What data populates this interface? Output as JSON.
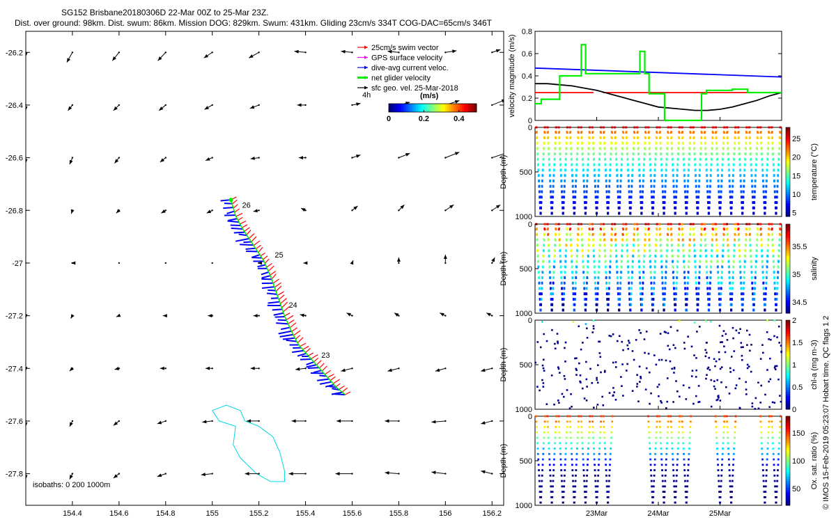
{
  "header": {
    "title": "SG152 Brisbane20180306D 22-Mar 00Z to 25-Mar 23Z.",
    "subtitle": "Dist. over ground: 98km. Dist. swum: 86km. Mission DOG: 829km. Swum: 431km. Gliding 23cm/s 334T COG-DAC=65cm/s 346T"
  },
  "footer_note": "© IMOS 15-Feb-2019 05:23:07 Hobart time. QC flags 1  2",
  "colors": {
    "swim": "#ff0000",
    "gps": "#ff00ff",
    "dac": "#0000ff",
    "glider": "#00ee00",
    "sfc": "#000000",
    "isobath": "#00d8e0"
  },
  "chart_data": [
    {
      "name": "map",
      "type": "vector-map",
      "xlim": [
        154.2,
        156.25
      ],
      "ylim": [
        -27.92,
        -26.12
      ],
      "xticks": [
        "154.4",
        "154.6",
        "154.8",
        "155",
        "155.2",
        "155.4",
        "155.6",
        "155.8",
        "156",
        "156.2"
      ],
      "yticks": [
        "-26.2",
        "-26.4",
        "-26.6",
        "-26.8",
        "-27",
        "-27.2",
        "-27.4",
        "-27.6",
        "-27.8"
      ],
      "legend": [
        {
          "label": "25cm/s swim vector",
          "color": "#ff0000"
        },
        {
          "label": "GPS surface velocity",
          "color": "#ff00ff"
        },
        {
          "label": "dive-avg current veloc.",
          "color": "#0000ff"
        },
        {
          "label": "net glider velocity",
          "color": "#00ee00"
        },
        {
          "label": "sfc geo. vel. 25-Mar-2018",
          "color": "#000000"
        }
      ],
      "legend_position": "top-right",
      "scale_label": "4h",
      "colorbar": {
        "label": "(m/s)",
        "ticks": [
          "0",
          "0.2",
          "0.4"
        ],
        "range": [
          0,
          0.5
        ]
      },
      "isobaths_label": "isobaths: 0   200  1000m",
      "day_labels": [
        {
          "text": "26",
          "lon": 155.11,
          "lat": -26.8
        },
        {
          "text": "25",
          "lon": 155.25,
          "lat": -26.99
        },
        {
          "text": "24",
          "lon": 155.31,
          "lat": -27.18
        },
        {
          "text": "23",
          "lon": 155.45,
          "lat": -27.37
        }
      ],
      "track": {
        "type": "glider-track",
        "start": {
          "lon": 155.08,
          "lat": -26.76
        },
        "end": {
          "lon": 155.57,
          "lat": -27.5
        },
        "points": [
          [
            155.08,
            -26.76
          ],
          [
            155.1,
            -26.82
          ],
          [
            155.13,
            -26.87
          ],
          [
            155.16,
            -26.91
          ],
          [
            155.19,
            -26.95
          ],
          [
            155.22,
            -26.99
          ],
          [
            155.25,
            -27.05
          ],
          [
            155.27,
            -27.1
          ],
          [
            155.29,
            -27.15
          ],
          [
            155.31,
            -27.2
          ],
          [
            155.34,
            -27.26
          ],
          [
            155.37,
            -27.31
          ],
          [
            155.41,
            -27.35
          ],
          [
            155.45,
            -27.39
          ],
          [
            155.49,
            -27.43
          ],
          [
            155.53,
            -27.47
          ],
          [
            155.57,
            -27.5
          ]
        ]
      },
      "isobath_polygon": [
        [
          155.0,
          -27.56
        ],
        [
          155.06,
          -27.54
        ],
        [
          155.12,
          -27.56
        ],
        [
          155.14,
          -27.6
        ],
        [
          155.2,
          -27.62
        ],
        [
          155.26,
          -27.66
        ],
        [
          155.29,
          -27.72
        ],
        [
          155.31,
          -27.79
        ],
        [
          155.31,
          -27.83
        ],
        [
          155.25,
          -27.83
        ],
        [
          155.19,
          -27.8
        ],
        [
          155.12,
          -27.74
        ],
        [
          155.09,
          -27.69
        ],
        [
          155.1,
          -27.62
        ],
        [
          155.03,
          -27.6
        ],
        [
          155.0,
          -27.56
        ]
      ],
      "vector_grid": {
        "lons": [
          154.2,
          154.4,
          154.6,
          154.8,
          155,
          155.2,
          155.4,
          155.6,
          155.8,
          156,
          156.2
        ],
        "lats": [
          -26.2,
          -26.4,
          -26.6,
          -26.8,
          -27,
          -27.2,
          -27.4,
          -27.6,
          -27.8
        ],
        "u_ms": [
          [
            0,
            -0.1,
            -0.12,
            -0.14,
            -0.15,
            -0.18,
            -0.2,
            -0.2,
            -0.2,
            0.2,
            0.15
          ],
          [
            0,
            -0.08,
            -0.1,
            -0.12,
            -0.14,
            -0.16,
            -0.15,
            0.15,
            0.2,
            0.25,
            0.25
          ],
          [
            0,
            -0.05,
            -0.08,
            -0.1,
            -0.12,
            -0.15,
            -0.12,
            0.15,
            0.2,
            0.25,
            0.3
          ],
          [
            0,
            -0.02,
            -0.05,
            -0.08,
            -0.1,
            -0.1,
            -0.08,
            0.1,
            0.1,
            0.15,
            0.15
          ],
          [
            0,
            -0.02,
            0,
            0,
            0,
            -0.02,
            -0.04,
            0.02,
            0,
            0,
            0.05
          ],
          [
            0,
            -0.03,
            -0.05,
            -0.05,
            -0.08,
            -0.1,
            -0.1,
            -0.1,
            -0.08,
            -0.1,
            -0.1
          ],
          [
            0,
            -0.05,
            -0.08,
            -0.1,
            -0.12,
            -0.15,
            -0.18,
            -0.2,
            -0.2,
            -0.18,
            -0.2
          ],
          [
            0,
            -0.05,
            -0.1,
            -0.15,
            -0.18,
            -0.22,
            -0.25,
            -0.28,
            -0.25,
            -0.25,
            -0.2
          ],
          [
            0,
            -0.05,
            -0.1,
            -0.15,
            -0.2,
            -0.25,
            -0.3,
            -0.3,
            -0.25,
            -0.25,
            -0.2
          ]
        ],
        "v_ms": [
          [
            -0.08,
            -0.18,
            -0.15,
            -0.15,
            -0.1,
            -0.1,
            0.02,
            0.02,
            0.02,
            0.03,
            0.05
          ],
          [
            -0.1,
            -0.1,
            -0.1,
            -0.1,
            -0.08,
            -0.06,
            0,
            0.03,
            0.05,
            0.08,
            0.1
          ],
          [
            -0.1,
            -0.12,
            -0.1,
            -0.08,
            -0.05,
            -0.02,
            0,
            0.05,
            0.08,
            0.1,
            0.1
          ],
          [
            0,
            -0.06,
            -0.05,
            -0.05,
            -0.05,
            -0.02,
            0.04,
            0.08,
            0.1,
            0.1,
            0.1
          ],
          [
            0,
            0,
            0,
            0,
            0,
            0,
            0,
            0.05,
            0.1,
            0.15,
            0.1
          ],
          [
            -0.05,
            -0.05,
            -0.02,
            0,
            0,
            0,
            0.02,
            0.05,
            0.05,
            0.05,
            0.05
          ],
          [
            -0.05,
            -0.05,
            -0.02,
            0,
            0,
            0,
            -0.02,
            -0.05,
            -0.05,
            -0.05,
            -0.05
          ],
          [
            -0.1,
            -0.1,
            -0.08,
            -0.05,
            -0.02,
            0,
            0,
            0,
            0,
            -0.02,
            -0.05
          ],
          [
            -0.1,
            -0.1,
            -0.08,
            -0.05,
            -0.02,
            0,
            0,
            0,
            0.02,
            0.03,
            0.05
          ]
        ]
      }
    },
    {
      "name": "velocity",
      "type": "line",
      "xlim": [
        0,
        4
      ],
      "ylim": [
        0,
        0.8
      ],
      "yticks": [
        "0",
        "0.2",
        "0.4",
        "0.6",
        "0.8"
      ],
      "ylabel": "velocity magnitude (m/s)",
      "series": [
        {
          "name": "dive-avg current veloc.",
          "color": "#0000ff",
          "x": [
            0,
            4
          ],
          "y": [
            0.47,
            0.39
          ]
        },
        {
          "name": "25cm/s swim vector",
          "color": "#ff0000",
          "x": [
            0,
            0.95,
            1.1,
            4
          ],
          "y": [
            0.25,
            0.25,
            0.25,
            0.25
          ]
        },
        {
          "name": "sfc geo. vel.",
          "color": "#000000",
          "x": [
            0,
            0.2,
            0.4,
            0.6,
            0.8,
            1.0,
            1.2,
            1.4,
            1.6,
            1.8,
            2.0,
            2.2,
            2.4,
            2.6,
            2.8,
            3.0,
            3.2,
            3.4,
            3.6,
            3.8,
            4.0
          ],
          "y": [
            0.33,
            0.33,
            0.32,
            0.31,
            0.29,
            0.27,
            0.24,
            0.21,
            0.18,
            0.15,
            0.12,
            0.11,
            0.1,
            0.09,
            0.09,
            0.1,
            0.12,
            0.15,
            0.18,
            0.22,
            0.25
          ]
        },
        {
          "name": "net glider velocity",
          "color": "#00ee00",
          "x": [
            0,
            0.1,
            0.1,
            0.4,
            0.4,
            0.75,
            0.75,
            0.82,
            0.82,
            1.7,
            1.7,
            1.78,
            1.78,
            1.85,
            1.85,
            2.1,
            2.1,
            2.7,
            2.7,
            2.78,
            2.78,
            3.2,
            3.2,
            3.45,
            3.45,
            4.0
          ],
          "y": [
            0.15,
            0.15,
            0.19,
            0.19,
            0.4,
            0.4,
            0.68,
            0.68,
            0.42,
            0.42,
            0.62,
            0.62,
            0.42,
            0.42,
            0.24,
            0.24,
            0.0,
            0.0,
            0.24,
            0.24,
            0.27,
            0.27,
            0.28,
            0.28,
            0.25,
            0.25
          ]
        }
      ]
    },
    {
      "name": "temperature",
      "type": "scatter",
      "ylabel": "Depth (m)",
      "ylim": [
        1000,
        0
      ],
      "yticks": [
        "0",
        "500",
        "1000"
      ],
      "clabel": "temperature (°C)",
      "cticks": [
        "5",
        "10",
        "15",
        "20",
        "25"
      ],
      "crange": [
        4,
        28
      ],
      "surface_value": 26,
      "deep_value": 5,
      "max_depth": 1000,
      "dives": 22
    },
    {
      "name": "salinity",
      "type": "scatter",
      "ylabel": "Depth (m)",
      "ylim": [
        1000,
        0
      ],
      "yticks": [
        "0",
        "500",
        "1000"
      ],
      "clabel": "salinity",
      "cticks": [
        "34.5",
        "35",
        "35.5"
      ],
      "crange": [
        34.3,
        35.9
      ],
      "surface_value": 35.7,
      "deep_value": 34.45,
      "max_depth": 1000,
      "dives": 22
    },
    {
      "name": "chlorophyll",
      "type": "scatter",
      "ylabel": "Depth (m)",
      "ylim": [
        1000,
        0
      ],
      "yticks": [
        "0",
        "500",
        "1000"
      ],
      "clabel": "chl-a (mg m-3)",
      "cticks": [
        "0",
        "0.5",
        "1",
        "1.5",
        "2"
      ],
      "crange": [
        0,
        2
      ],
      "sparse": true
    },
    {
      "name": "oxygen",
      "type": "scatter",
      "ylabel": "Depth (m)",
      "ylim": [
        1000,
        0
      ],
      "yticks": [
        "0",
        "500",
        "1000"
      ],
      "clabel": "Ox. sat. ratio (%)",
      "cticks": [
        "50",
        "100",
        "150"
      ],
      "crange": [
        20,
        180
      ],
      "xticks": [
        "23Mar",
        "24Mar",
        "25Mar"
      ],
      "xtick_days": [
        1,
        2,
        3
      ],
      "gap_days": [
        [
          1.25,
          1.9
        ],
        [
          2.55,
          2.95
        ],
        [
          3.3,
          3.6
        ]
      ]
    }
  ]
}
